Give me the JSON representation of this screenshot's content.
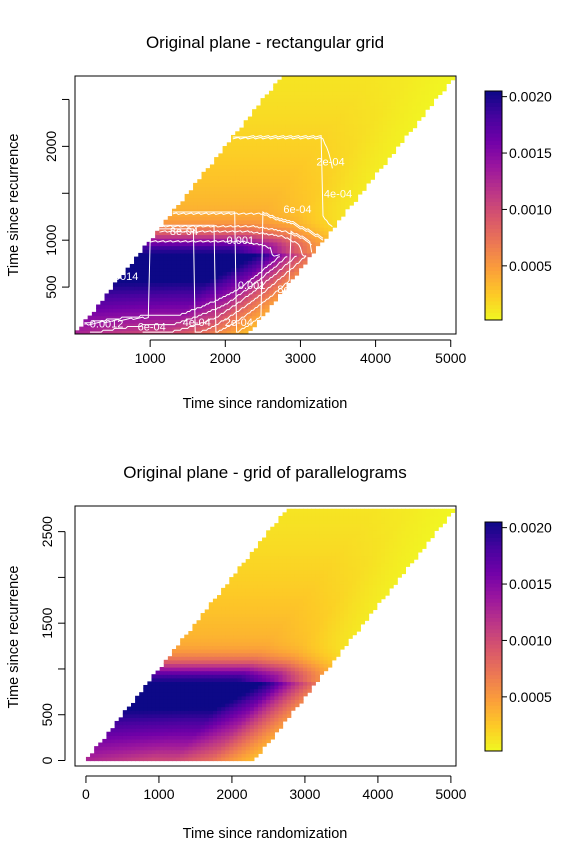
{
  "colors": {
    "scale": [
      "#f0f921",
      "#fdca26",
      "#fb9f3a",
      "#ed7953",
      "#d8576b",
      "#bd3786",
      "#9c179e",
      "#7201a8",
      "#46039f",
      "#0d0887"
    ],
    "contour": "#ffffff",
    "frame": "#000000"
  },
  "chart_data": [
    {
      "type": "heatmap",
      "title": "Original plane - rectangular grid",
      "xlabel": "Time since randomization",
      "ylabel": "Time since recurrence",
      "xlim": [
        0,
        5070
      ],
      "ylim": [
        0,
        2750
      ],
      "xticks": [
        1000,
        2000,
        3000,
        4000,
        5000
      ],
      "yticks": [
        500,
        1000,
        2000
      ],
      "yminor": [
        1500,
        2500
      ],
      "domain": "recurrence <= randomization <= recurrence + 2300",
      "colorbar": {
        "min": 2e-05,
        "max": 0.00205,
        "ticks": [
          "0.0005",
          "0.0010",
          "0.0015",
          "0.0020"
        ]
      },
      "contours": [
        {
          "label": "2e-04",
          "x": 3400,
          "y": 1840
        },
        {
          "label": "4e-04",
          "x": 3500,
          "y": 1500
        },
        {
          "label": "6e-04",
          "x": 2960,
          "y": 1330
        },
        {
          "label": "8e-04",
          "x": 1450,
          "y": 1100
        },
        {
          "label": "0.001",
          "x": 2200,
          "y": 1000
        },
        {
          "label": "0.0014",
          "x": 620,
          "y": 620
        },
        {
          "label": "0.001",
          "x": 2350,
          "y": 520
        },
        {
          "label": "8e-04",
          "x": 2880,
          "y": 480
        },
        {
          "label": "0.0012",
          "x": 420,
          "y": 110
        },
        {
          "label": "6e-04",
          "x": 1020,
          "y": 80
        },
        {
          "label": "4e-04",
          "x": 1620,
          "y": 130
        },
        {
          "label": "2e-04",
          "x": 2180,
          "y": 130
        }
      ]
    },
    {
      "type": "heatmap",
      "title": "Original plane - grid of parallelograms",
      "xlabel": "Time since randomization",
      "ylabel": "Time since recurrence",
      "xlim": [
        -150,
        5070
      ],
      "ylim": [
        -60,
        2780
      ],
      "xticks": [
        0,
        1000,
        2000,
        3000,
        4000,
        5000
      ],
      "yticks": [
        0,
        500,
        1500,
        2500
      ],
      "yminor": [
        1000,
        2000
      ],
      "domain": "recurrence <= randomization <= recurrence + 2300",
      "colorbar": {
        "min": 2e-05,
        "max": 0.00205,
        "ticks": [
          "0.0005",
          "0.0010",
          "0.0015",
          "0.0020"
        ]
      }
    }
  ]
}
